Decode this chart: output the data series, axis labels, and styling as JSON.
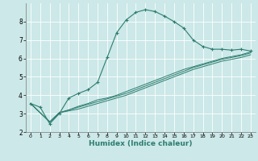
{
  "title": "",
  "xlabel": "Humidex (Indice chaleur)",
  "ylabel": "",
  "bg_color": "#cce8e8",
  "grid_color": "#ffffff",
  "line_color": "#2d7d6f",
  "xlim": [
    -0.5,
    23.5
  ],
  "ylim": [
    2,
    9
  ],
  "yticks": [
    2,
    3,
    4,
    5,
    6,
    7,
    8
  ],
  "xticks": [
    0,
    1,
    2,
    3,
    4,
    5,
    6,
    7,
    8,
    9,
    10,
    11,
    12,
    13,
    14,
    15,
    16,
    17,
    18,
    19,
    20,
    21,
    22,
    23
  ],
  "line1_x": [
    0,
    1,
    2,
    3,
    4,
    5,
    6,
    7,
    8,
    9,
    10,
    11,
    12,
    13,
    14,
    15,
    16,
    17,
    18,
    19,
    20,
    21,
    22,
    23
  ],
  "line1_y": [
    3.55,
    3.35,
    2.45,
    3.0,
    3.85,
    4.1,
    4.3,
    4.7,
    6.05,
    7.4,
    8.1,
    8.5,
    8.65,
    8.55,
    8.3,
    8.0,
    7.65,
    7.0,
    6.65,
    6.5,
    6.5,
    6.45,
    6.5,
    6.4
  ],
  "line2_x": [
    0,
    2,
    3,
    4,
    5,
    6,
    7,
    8,
    9,
    10,
    11,
    12,
    13,
    14,
    15,
    16,
    17,
    18,
    19,
    20,
    21,
    22,
    23
  ],
  "line2_y": [
    3.55,
    2.55,
    3.05,
    3.2,
    3.4,
    3.55,
    3.75,
    3.85,
    4.0,
    4.2,
    4.4,
    4.6,
    4.8,
    5.0,
    5.2,
    5.4,
    5.55,
    5.7,
    5.85,
    6.0,
    6.1,
    6.2,
    6.35
  ],
  "line3_x": [
    0,
    2,
    3,
    4,
    5,
    6,
    7,
    8,
    9,
    10,
    11,
    12,
    13,
    14,
    15,
    16,
    17,
    18,
    19,
    20,
    21,
    22,
    23
  ],
  "line3_y": [
    3.55,
    2.55,
    3.05,
    3.2,
    3.35,
    3.5,
    3.65,
    3.8,
    3.95,
    4.1,
    4.3,
    4.5,
    4.7,
    4.9,
    5.1,
    5.3,
    5.5,
    5.65,
    5.8,
    5.95,
    6.05,
    6.15,
    6.3
  ],
  "line4_x": [
    0,
    2,
    3,
    4,
    5,
    6,
    7,
    8,
    9,
    10,
    11,
    12,
    13,
    14,
    15,
    16,
    17,
    18,
    19,
    20,
    21,
    22,
    23
  ],
  "line4_y": [
    3.55,
    2.55,
    3.05,
    3.15,
    3.25,
    3.4,
    3.55,
    3.7,
    3.85,
    4.0,
    4.2,
    4.4,
    4.6,
    4.8,
    5.0,
    5.2,
    5.4,
    5.55,
    5.7,
    5.85,
    5.95,
    6.05,
    6.2
  ],
  "xlabel_fontsize": 6.5,
  "xlabel_color": "#2d7d6f",
  "tick_fontsize_x": 4.5,
  "tick_fontsize_y": 5.5
}
